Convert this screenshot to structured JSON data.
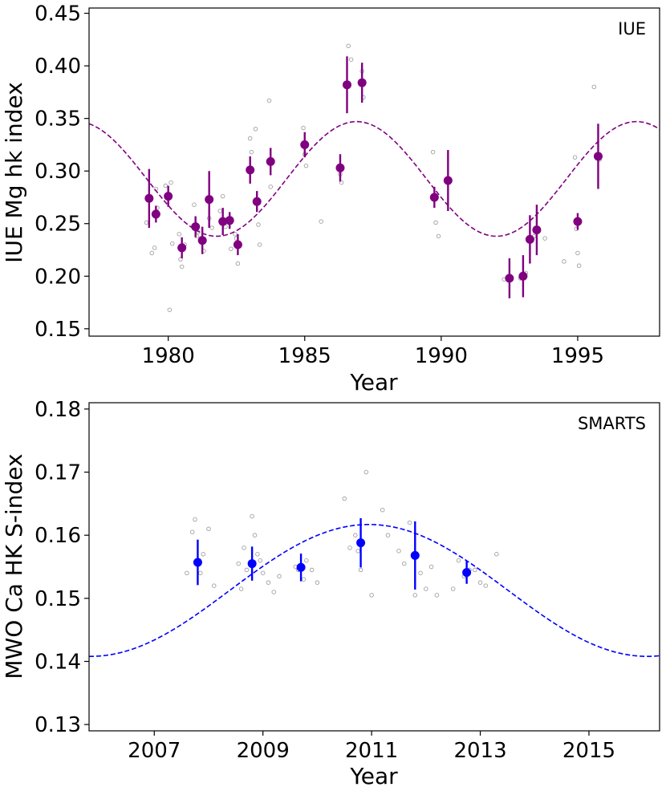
{
  "chart_data": [
    {
      "type": "scatter",
      "panel_label": "IUE",
      "xlabel": "Year",
      "ylabel": "IUE Mg hk index",
      "xlim": [
        1977.1,
        1998.0
      ],
      "ylim": [
        0.143,
        0.455
      ],
      "xticks": [
        1980,
        1985,
        1990,
        1995
      ],
      "xtick_labels": [
        "1980",
        "1985",
        "1990",
        "1995"
      ],
      "yticks": [
        0.15,
        0.2,
        0.25,
        0.3,
        0.35,
        0.4,
        0.45
      ],
      "ytick_labels": [
        "0.15",
        "0.20",
        "0.25",
        "0.30",
        "0.35",
        "0.40",
        "0.45"
      ],
      "color": "#800080",
      "fit": {
        "name": "sinusoidal cycle fit",
        "center": 0.2925,
        "amplitude": 0.0545,
        "period": 10.25,
        "peak_year": 1986.9
      },
      "binned": {
        "x": [
          1979.3,
          1979.55,
          1980.0,
          1980.5,
          1981.0,
          1981.25,
          1981.5,
          1982.0,
          1982.25,
          1982.55,
          1983.0,
          1983.25,
          1983.75,
          1985.0,
          1986.3,
          1986.55,
          1987.1,
          1989.75,
          1990.25,
          1992.5,
          1993.0,
          1993.25,
          1993.5,
          1995.0,
          1995.75
        ],
        "y": [
          0.274,
          0.259,
          0.276,
          0.227,
          0.247,
          0.234,
          0.273,
          0.252,
          0.253,
          0.23,
          0.301,
          0.271,
          0.309,
          0.325,
          0.303,
          0.382,
          0.384,
          0.275,
          0.291,
          0.198,
          0.2,
          0.235,
          0.244,
          0.252,
          0.314
        ],
        "err": [
          0.028,
          0.008,
          0.01,
          0.01,
          0.01,
          0.013,
          0.027,
          0.013,
          0.008,
          0.01,
          0.013,
          0.01,
          0.013,
          0.012,
          0.013,
          0.027,
          0.019,
          0.01,
          0.029,
          0.019,
          0.02,
          0.023,
          0.024,
          0.008,
          0.031
        ]
      },
      "observations": {
        "x": [
          1979.2,
          1979.4,
          1979.5,
          1979.55,
          1979.6,
          1979.9,
          1980.05,
          1980.1,
          1980.15,
          1980.4,
          1980.45,
          1980.5,
          1980.6,
          1980.95,
          1981.05,
          1981.1,
          1981.2,
          1981.3,
          1981.5,
          1981.6,
          1981.9,
          1982.0,
          1982.1,
          1982.3,
          1982.45,
          1982.5,
          1982.55,
          1983.0,
          1983.05,
          1983.2,
          1983.3,
          1983.35,
          1983.7,
          1983.75,
          1984.95,
          1985.0,
          1985.05,
          1985.6,
          1986.3,
          1986.35,
          1986.6,
          1986.7,
          1987.1,
          1987.15,
          1989.7,
          1989.8,
          1989.9,
          1992.3,
          1992.5,
          1992.9,
          1993.1,
          1993.4,
          1993.8,
          1994.5,
          1994.9,
          1994.95,
          1995.0,
          1995.05,
          1995.6,
          1995.8
        ],
        "y": [
          0.251,
          0.222,
          0.227,
          0.283,
          0.265,
          0.286,
          0.168,
          0.289,
          0.231,
          0.24,
          0.216,
          0.209,
          0.23,
          0.268,
          0.238,
          0.242,
          0.236,
          0.224,
          0.255,
          0.246,
          0.262,
          0.276,
          0.247,
          0.226,
          0.24,
          0.236,
          0.212,
          0.331,
          0.318,
          0.34,
          0.249,
          0.23,
          0.367,
          0.285,
          0.341,
          0.316,
          0.305,
          0.252,
          0.297,
          0.289,
          0.419,
          0.406,
          0.395,
          0.37,
          0.318,
          0.251,
          0.238,
          0.197,
          0.199,
          0.198,
          0.203,
          0.238,
          0.236,
          0.214,
          0.313,
          0.245,
          0.222,
          0.21,
          0.38,
          0.311
        ]
      }
    },
    {
      "type": "scatter",
      "panel_label": "SMARTS",
      "xlabel": "Year",
      "ylabel": "MWO Ca HK S-index",
      "xlim": [
        2005.8,
        2016.3
      ],
      "ylim": [
        0.129,
        0.181
      ],
      "xticks": [
        2007,
        2009,
        2011,
        2013,
        2015
      ],
      "xtick_labels": [
        "2007",
        "2009",
        "2011",
        "2013",
        "2015"
      ],
      "yticks": [
        0.13,
        0.14,
        0.15,
        0.16,
        0.17,
        0.18
      ],
      "ytick_labels": [
        "0.13",
        "0.14",
        "0.15",
        "0.16",
        "0.17",
        "0.18"
      ],
      "color": "#0000ff",
      "fit": {
        "name": "sinusoidal cycle fit",
        "center": 0.15125,
        "amplitude": 0.01045,
        "period": 10.25,
        "peak_year": 2010.95
      },
      "binned": {
        "x": [
          2007.8,
          2008.8,
          2009.7,
          2010.8,
          2011.8,
          2012.75
        ],
        "y": [
          0.1557,
          0.1555,
          0.1549,
          0.1588,
          0.1568,
          0.1541
        ],
        "err": [
          0.0036,
          0.0027,
          0.0022,
          0.0039,
          0.0054,
          0.0018
        ]
      },
      "observations": {
        "x": [
          2007.6,
          2007.7,
          2007.75,
          2007.85,
          2007.9,
          2008.0,
          2008.1,
          2008.55,
          2008.6,
          2008.65,
          2008.7,
          2008.8,
          2008.85,
          2008.9,
          2008.95,
          2009.0,
          2009.1,
          2009.2,
          2009.3,
          2009.6,
          2009.65,
          2009.75,
          2009.8,
          2009.9,
          2010.0,
          2010.5,
          2010.6,
          2010.7,
          2010.75,
          2010.8,
          2010.9,
          2011.0,
          2011.2,
          2011.3,
          2011.5,
          2011.6,
          2011.7,
          2011.8,
          2011.9,
          2012.0,
          2012.1,
          2012.2,
          2012.5,
          2012.6,
          2012.7,
          2012.8,
          2012.9,
          2013.0,
          2013.1,
          2013.3
        ],
        "y": [
          0.154,
          0.1605,
          0.1625,
          0.154,
          0.157,
          0.161,
          0.152,
          0.1555,
          0.1515,
          0.158,
          0.1545,
          0.163,
          0.16,
          0.157,
          0.156,
          0.154,
          0.1525,
          0.151,
          0.1535,
          0.155,
          0.1545,
          0.153,
          0.156,
          0.1545,
          0.1525,
          0.1658,
          0.158,
          0.16,
          0.1575,
          0.1545,
          0.17,
          0.1505,
          0.164,
          0.16,
          0.1575,
          0.1555,
          0.162,
          0.1505,
          0.154,
          0.1515,
          0.155,
          0.1505,
          0.1515,
          0.156,
          0.1535,
          0.1545,
          0.1545,
          0.1525,
          0.152,
          0.157
        ]
      }
    }
  ]
}
